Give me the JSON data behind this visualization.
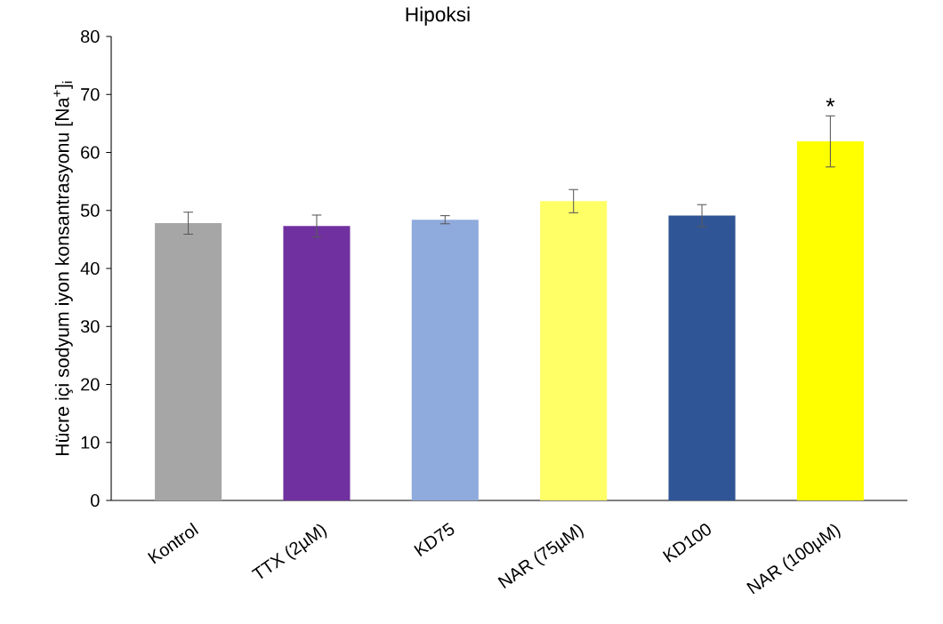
{
  "chart_data": {
    "type": "bar",
    "title": "Hipoksi",
    "ylabel": "Hücre içi sodyum iyon konsantrasyonu [Na$^{+}$]$_{i}$",
    "categories": [
      "Kontrol",
      "TTX (2µM)",
      "KD75",
      "NAR (75µM)",
      "KD100",
      "NAR (100µM)"
    ],
    "values": [
      47.8,
      47.3,
      48.4,
      51.6,
      49.1,
      61.9
    ],
    "errors": [
      1.9,
      1.9,
      0.7,
      2.0,
      1.9,
      4.4
    ],
    "colors": [
      "#a6a6a6",
      "#7030a0",
      "#8faadc",
      "#ffff66",
      "#2f5597",
      "#ffff00"
    ],
    "ylim": [
      0,
      80
    ],
    "yticks": [
      0,
      10,
      20,
      30,
      40,
      50,
      60,
      70,
      80
    ],
    "grid": false,
    "annotations": [
      {
        "text": "*",
        "x": "NAR (100µM)",
        "y": 66.3
      }
    ]
  }
}
